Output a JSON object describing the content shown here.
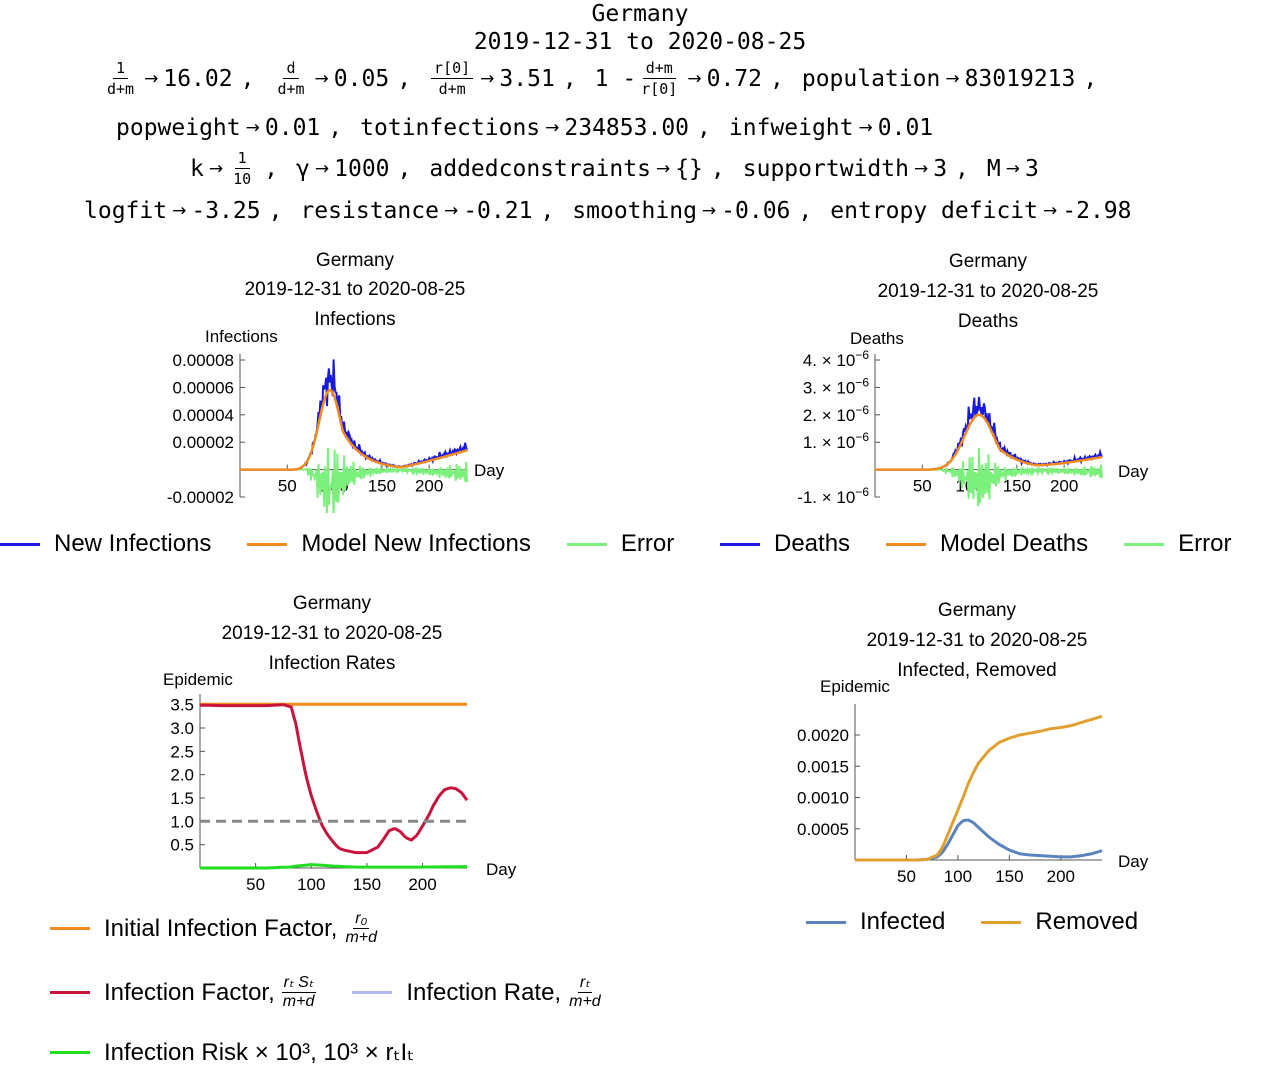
{
  "header": {
    "country": "Germany",
    "date_range": "2019-12-31 to 2020-08-25",
    "params": {
      "row1": [
        {
          "frac_num": "1",
          "frac_den": "d+m",
          "value": "16.02"
        },
        {
          "frac_num": "d",
          "frac_den": "d+m",
          "value": "0.05"
        },
        {
          "frac_num": "r[0]",
          "frac_den": "d+m",
          "value": "3.51"
        },
        {
          "prefix": "1 -",
          "frac_num": "d+m",
          "frac_den": "r[0]",
          "value": "0.72"
        },
        {
          "name": "population",
          "value": "83019213"
        }
      ],
      "row2": [
        {
          "name": "popweight",
          "value": "0.01"
        },
        {
          "name": "totinfections",
          "value": "234853.00"
        },
        {
          "name": "infweight",
          "value": "0.01"
        }
      ],
      "row3": [
        {
          "name": "k",
          "frac_num": "1",
          "frac_den": "10"
        },
        {
          "name": "γ",
          "value": "1000"
        },
        {
          "name": "addedconstraints",
          "value": "{}"
        },
        {
          "name": "supportwidth",
          "value": "3"
        },
        {
          "name": "M",
          "value": "3"
        }
      ],
      "row4": [
        {
          "name": "logfit",
          "value": "-3.25"
        },
        {
          "name": "resistance",
          "value": "-0.21"
        },
        {
          "name": "smoothing",
          "value": "-0.06"
        },
        {
          "name": "entropy deficit",
          "value": "-2.98"
        }
      ]
    }
  },
  "chart_data": [
    {
      "type": "line",
      "title": "Germany",
      "subtitle": "2019-12-31 to 2020-08-25",
      "subtitle2": "Infections",
      "xlabel": "Day",
      "ylabel": "Infections",
      "xlim": [
        0,
        240
      ],
      "ylim": [
        -2e-05,
        8e-05
      ],
      "xticks": [
        50,
        100,
        150,
        200
      ],
      "yticks": [
        {
          "v": 8e-05,
          "label": "0.00008"
        },
        {
          "v": 6e-05,
          "label": "0.00006"
        },
        {
          "v": 4e-05,
          "label": "0.00004"
        },
        {
          "v": 2e-05,
          "label": "0.00002"
        },
        {
          "v": -2e-05,
          "label": "-0.00002"
        }
      ],
      "series": [
        {
          "name": "New Infections",
          "color": "#1a1adc"
        },
        {
          "name": "Model New Infections",
          "color": "#f28a1c"
        },
        {
          "name": "Error",
          "color": "#7cf07c"
        }
      ],
      "legend_position": "bottom"
    },
    {
      "type": "line",
      "title": "Germany",
      "subtitle": "2019-12-31 to 2020-08-25",
      "subtitle2": "Deaths",
      "xlabel": "Day",
      "ylabel": "Deaths",
      "xlim": [
        0,
        240
      ],
      "ylim": [
        -1e-06,
        4e-06
      ],
      "xticks": [
        50,
        100,
        150,
        200
      ],
      "yticks": [
        {
          "v": 4e-06,
          "label": "4. × 10",
          "exp": "−6"
        },
        {
          "v": 3e-06,
          "label": "3. × 10",
          "exp": "−6"
        },
        {
          "v": 2e-06,
          "label": "2. × 10",
          "exp": "−6"
        },
        {
          "v": 1e-06,
          "label": "1. × 10",
          "exp": "−6"
        },
        {
          "v": -1e-06,
          "label": "-1. × 10",
          "exp": "−6"
        }
      ],
      "series": [
        {
          "name": "Deaths",
          "color": "#1a1adc"
        },
        {
          "name": "Model Deaths",
          "color": "#f28a1c"
        },
        {
          "name": "Error",
          "color": "#7cf07c"
        }
      ],
      "legend_position": "bottom"
    },
    {
      "type": "line",
      "title": "Germany",
      "subtitle": "2019-12-31 to 2020-08-25",
      "subtitle2": "Infection Rates",
      "xlabel": "Day",
      "ylabel": "Epidemic",
      "xlim": [
        0,
        240
      ],
      "ylim": [
        0,
        3.6
      ],
      "xticks": [
        50,
        100,
        150,
        200
      ],
      "yticks": [
        {
          "v": 3.5,
          "label": "3.5"
        },
        {
          "v": 3.0,
          "label": "3.0"
        },
        {
          "v": 2.5,
          "label": "2.5"
        },
        {
          "v": 2.0,
          "label": "2.0"
        },
        {
          "v": 1.5,
          "label": "1.5"
        },
        {
          "v": 1.0,
          "label": "1.0"
        },
        {
          "v": 0.5,
          "label": "0.5"
        }
      ],
      "series": [
        {
          "name": "Initial Infection Factor",
          "color": "#f28a1c",
          "x": [
            0,
            240
          ],
          "y": [
            3.51,
            3.51
          ]
        },
        {
          "name": "Infection Factor",
          "color": "#c8143c",
          "x": [
            0,
            20,
            40,
            60,
            75,
            82,
            86,
            90,
            95,
            100,
            105,
            110,
            115,
            120,
            125,
            130,
            140,
            150,
            160,
            165,
            170,
            175,
            180,
            185,
            190,
            195,
            200,
            205,
            210,
            215,
            220,
            225,
            230,
            235,
            240
          ],
          "y": [
            3.49,
            3.48,
            3.48,
            3.48,
            3.5,
            3.45,
            3.1,
            2.6,
            2.0,
            1.55,
            1.2,
            0.9,
            0.7,
            0.55,
            0.42,
            0.38,
            0.33,
            0.33,
            0.45,
            0.62,
            0.8,
            0.85,
            0.78,
            0.65,
            0.6,
            0.7,
            0.9,
            1.1,
            1.35,
            1.55,
            1.68,
            1.72,
            1.7,
            1.62,
            1.45
          ]
        },
        {
          "name": "Infection Rate",
          "color": "#b4b8f0"
        },
        {
          "name": "Infection Risk",
          "color": "#22dd22",
          "x": [
            0,
            60,
            80,
            90,
            100,
            110,
            120,
            140,
            160,
            200,
            240
          ],
          "y": [
            0.0,
            0.0,
            0.02,
            0.05,
            0.07,
            0.06,
            0.04,
            0.02,
            0.02,
            0.02,
            0.03
          ]
        },
        {
          "name": "threshold",
          "color": "#888888",
          "x": [
            0,
            240
          ],
          "y": [
            1.0,
            1.0
          ]
        }
      ],
      "legend": [
        {
          "label": "Initial Infection Factor, ",
          "frac_num": "r₀",
          "frac_den": "m+d",
          "color": "#f28a1c"
        },
        {
          "label": "Infection Factor, ",
          "frac_num": "rₜ Sₜ",
          "frac_den": "m+d",
          "color": "#c8143c"
        },
        {
          "label": "Infection Rate, ",
          "frac_num": "rₜ",
          "frac_den": "m+d",
          "color": "#b4b8f0"
        },
        {
          "label": "Infection Risk × 10³, 10³ × rₜIₜ",
          "color": "#22dd22"
        }
      ]
    },
    {
      "type": "line",
      "title": "Germany",
      "subtitle": "2019-12-31 to 2020-08-25",
      "subtitle2": "Infected, Removed",
      "xlabel": "Day",
      "ylabel": "Epidemic",
      "xlim": [
        0,
        240
      ],
      "ylim": [
        0,
        0.0024
      ],
      "xticks": [
        50,
        100,
        150,
        200
      ],
      "yticks": [
        {
          "v": 0.002,
          "label": "0.0020"
        },
        {
          "v": 0.0015,
          "label": "0.0015"
        },
        {
          "v": 0.001,
          "label": "0.0010"
        },
        {
          "v": 0.0005,
          "label": "0.0005"
        }
      ],
      "series": [
        {
          "name": "Infected",
          "color": "#5b83bd",
          "x": [
            0,
            60,
            70,
            80,
            85,
            90,
            95,
            100,
            105,
            110,
            115,
            120,
            130,
            140,
            150,
            160,
            170,
            180,
            190,
            200,
            210,
            220,
            230,
            240
          ],
          "y": [
            0.0,
            0.0,
            1e-05,
            5e-05,
            0.00012,
            0.00025,
            0.0004,
            0.00055,
            0.00063,
            0.00064,
            0.0006,
            0.00052,
            0.00037,
            0.00025,
            0.00016,
            0.0001,
            8e-05,
            7e-05,
            6e-05,
            5e-05,
            5e-05,
            7e-05,
            0.0001,
            0.00015
          ]
        },
        {
          "name": "Removed",
          "color": "#e0a030",
          "x": [
            0,
            60,
            70,
            80,
            85,
            90,
            95,
            100,
            105,
            110,
            115,
            120,
            130,
            140,
            150,
            160,
            170,
            180,
            190,
            200,
            210,
            220,
            230,
            240
          ],
          "y": [
            0.0,
            0.0,
            1e-05,
            8e-05,
            0.0002,
            0.0004,
            0.0006,
            0.0008,
            0.001,
            0.00122,
            0.0014,
            0.00155,
            0.00175,
            0.00188,
            0.00195,
            0.002,
            0.00203,
            0.00206,
            0.0021,
            0.00212,
            0.00215,
            0.0022,
            0.00225,
            0.0023
          ]
        }
      ],
      "legend_position": "bottom"
    }
  ]
}
